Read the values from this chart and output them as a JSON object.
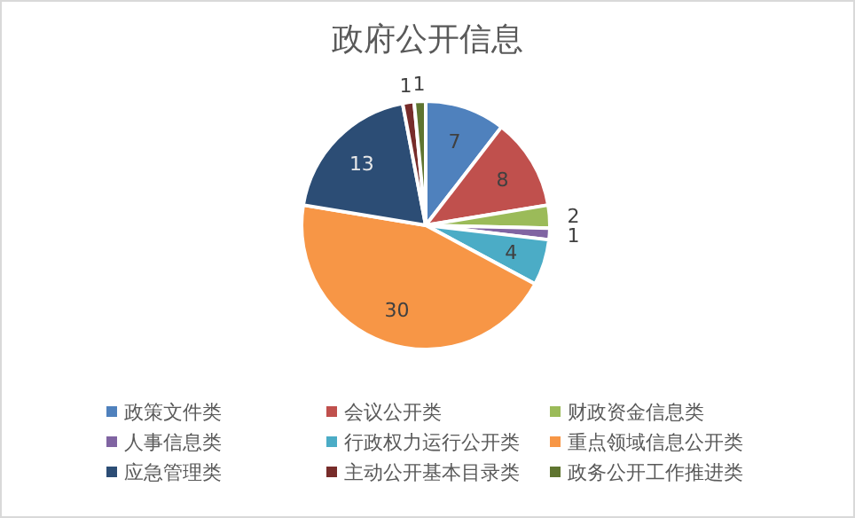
{
  "chart_data": {
    "type": "pie",
    "title": "政府公开信息",
    "categories": [
      "政策文件类",
      "会议公开类",
      "财政资金信息类",
      "人事信息类",
      "行政权力运行公开类",
      "重点领域信息公开类",
      "应急管理类",
      "主动公开基本目录类",
      "政务公开工作推进类"
    ],
    "values": [
      7,
      8,
      2,
      1,
      4,
      30,
      13,
      1,
      1
    ],
    "colors": [
      "#4f81bd",
      "#c0504d",
      "#9bbb59",
      "#8064a2",
      "#4bacc6",
      "#f79646",
      "#2c4d75",
      "#772c2a",
      "#5f7530"
    ],
    "data_labels": true,
    "legend": "bottom"
  }
}
